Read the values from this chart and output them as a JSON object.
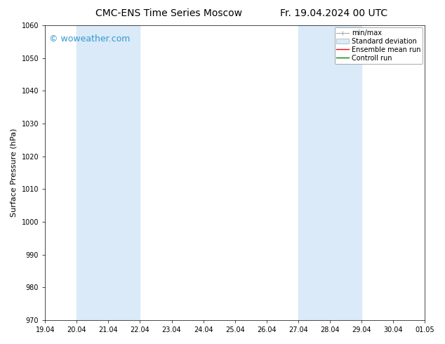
{
  "title_left": "CMC-ENS Time Series Moscow",
  "title_right": "Fr. 19.04.2024 00 UTC",
  "ylabel": "Surface Pressure (hPa)",
  "ylim": [
    970,
    1060
  ],
  "yticks": [
    970,
    980,
    990,
    1000,
    1010,
    1020,
    1030,
    1040,
    1050,
    1060
  ],
  "xtick_labels": [
    "19.04",
    "20.04",
    "21.04",
    "22.04",
    "23.04",
    "24.04",
    "25.04",
    "26.04",
    "27.04",
    "28.04",
    "29.04",
    "30.04",
    "01.05"
  ],
  "xtick_positions": [
    0,
    1,
    2,
    3,
    4,
    5,
    6,
    7,
    8,
    9,
    10,
    11,
    12
  ],
  "shaded_regions": [
    {
      "x_start": 1,
      "x_end": 3,
      "color": "#daeaf8"
    },
    {
      "x_start": 8,
      "x_end": 10,
      "color": "#daeaf8"
    }
  ],
  "watermark": "© woweather.com",
  "watermark_color": "#3399cc",
  "watermark_fontsize": 9,
  "bg_color": "#ffffff",
  "plot_bg_color": "#ffffff",
  "title_fontsize": 10,
  "axis_label_fontsize": 8,
  "tick_fontsize": 7,
  "legend_fontsize": 7
}
